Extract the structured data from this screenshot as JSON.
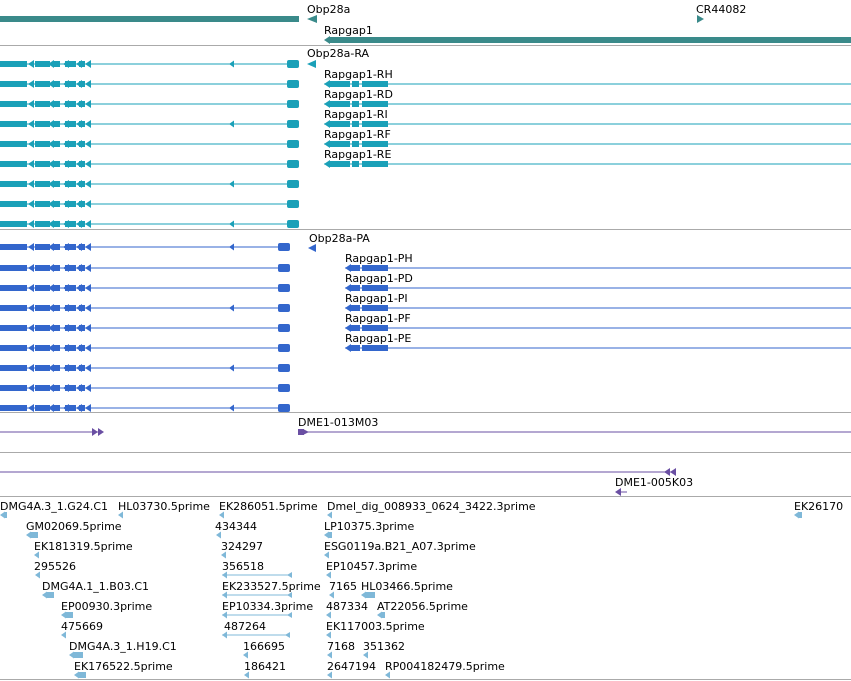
{
  "colors": {
    "gene": "#3a8a8a",
    "transcript": "#1aa0b8",
    "protein": "#3366cc",
    "clone": "#6a4fa3",
    "est": "#7fb8d8",
    "divider": "#aaaaaa"
  },
  "icons": {
    "strand-left": "left-arrow-icon",
    "strand-right": "right-arrow-icon"
  },
  "genes": {
    "obp28a": "Obp28a",
    "cr44082": "CR44082",
    "rapgap1": "Rapgap1"
  },
  "transcripts": {
    "obp28a": "Obp28a-RA",
    "items": [
      "Rapgap1-RH",
      "Rapgap1-RD",
      "Rapgap1-RI",
      "Rapgap1-RF",
      "Rapgap1-RE"
    ]
  },
  "proteins": {
    "obp28a": "Obp28a-PA",
    "items": [
      "Rapgap1-PH",
      "Rapgap1-PD",
      "Rapgap1-PI",
      "Rapgap1-PF",
      "Rapgap1-PE"
    ]
  },
  "clones": {
    "a": "DME1-013M03",
    "b": "DME1-005K03"
  },
  "ests": [
    "DMG4A.3_1.G24.C1",
    "HL03730.5prime",
    "EK286051.5prime",
    "Dmel_dig_008933_0624_3422.3prime",
    "EK26170",
    "GM02069.5prime",
    "434344",
    "LP10375.3prime",
    "EK181319.5prime",
    "324297",
    "ESG0119a.B21_A07.3prime",
    "295526",
    "356518",
    "EP10457.3prime",
    "DMG4A.1_1.B03.C1",
    "EK233527.5prime",
    "7165",
    "HL03466.5prime",
    "EP00930.3prime",
    "EP10334.3prime",
    "487334",
    "AT22056.5prime",
    "475669",
    "487264",
    "EK117003.5prime",
    "DMG4A.3_1.H19.C1",
    "166695",
    "7168",
    "351362",
    "EK176522.5prime",
    "186421",
    "2647194",
    "RP004182479.5prime"
  ]
}
